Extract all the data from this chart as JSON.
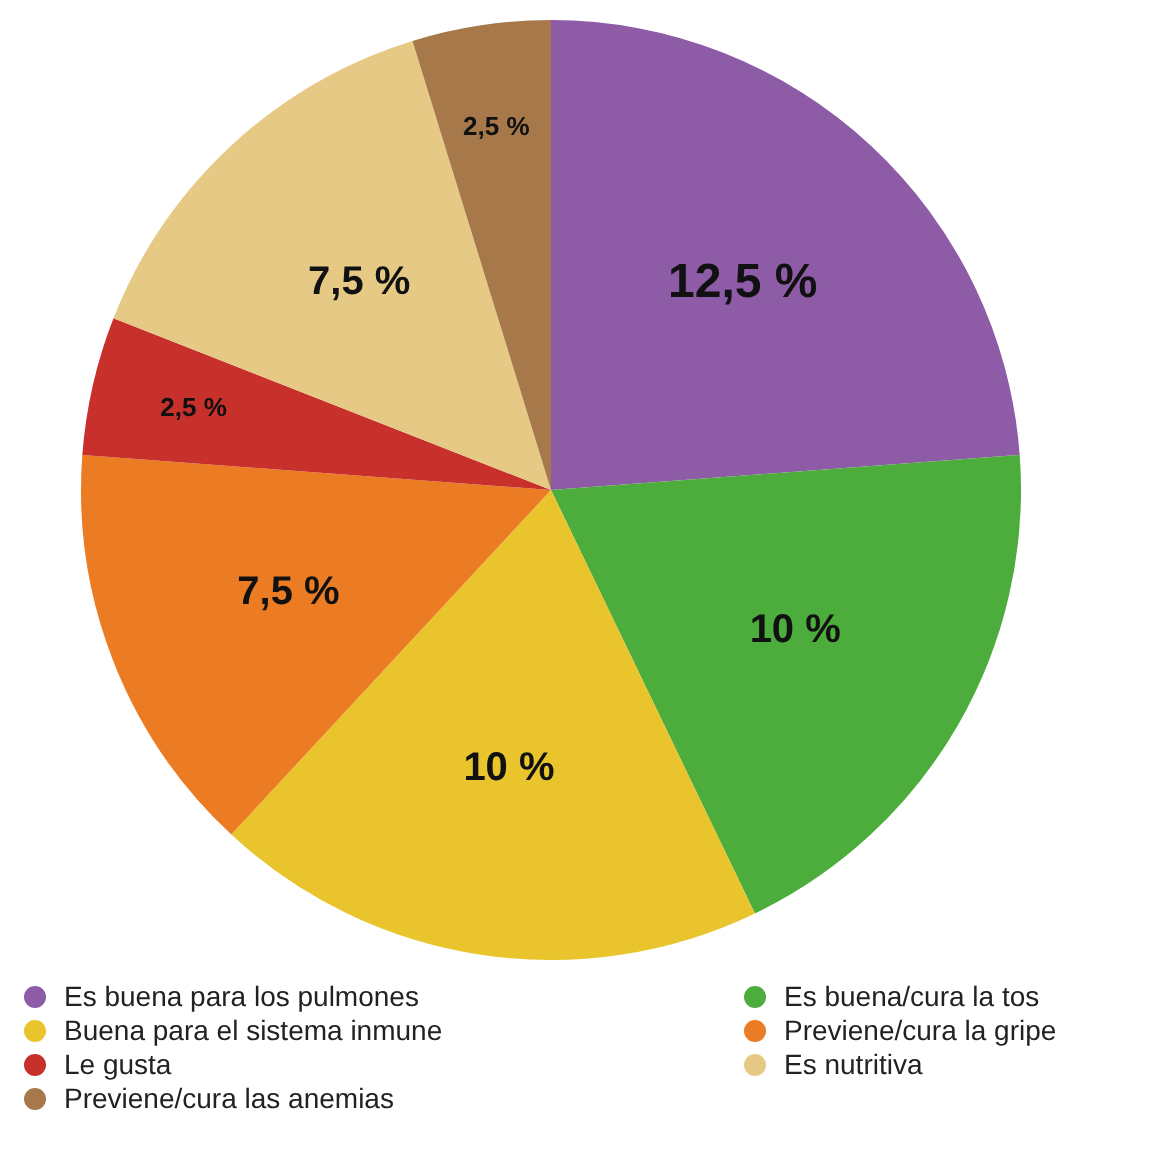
{
  "chart_data": {
    "type": "pie",
    "categories": [
      "Es buena para los pulmones",
      "Es buena/cura la tos",
      "Buena para el sistema inmune",
      "Previene/cura la gripe",
      "Le gusta",
      "Es nutritiva",
      "Previene/cura las anemias"
    ],
    "values": [
      12.5,
      10,
      10,
      7.5,
      2.5,
      7.5,
      2.5
    ],
    "value_labels": [
      "12,5 %",
      "10 %",
      "10 %",
      "7,5 %",
      "2,5 %",
      "7,5 %",
      "2,5 %"
    ],
    "colors": [
      "#8e5ba6",
      "#4cac3c",
      "#e9c42c",
      "#ec7c24",
      "#c7302b",
      "#e6c985",
      "#a6784a"
    ],
    "legend": "bottom"
  }
}
